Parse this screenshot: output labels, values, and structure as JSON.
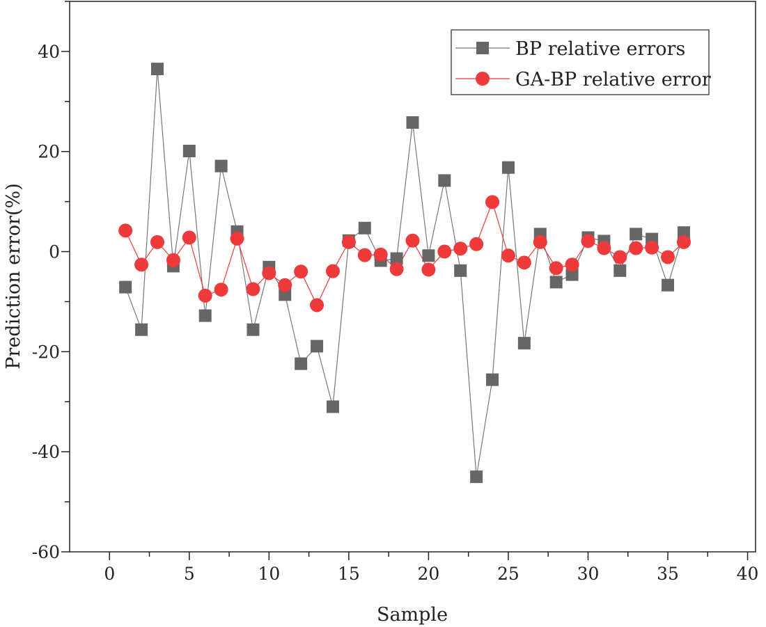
{
  "chart_data": {
    "type": "line",
    "title": "",
    "xlabel": "Sample",
    "ylabel": "Prediction error(%)",
    "xlim": [
      -2.5,
      40.5
    ],
    "ylim": [
      -60,
      50
    ],
    "xticks": [
      0,
      5,
      10,
      15,
      20,
      25,
      30,
      35,
      40
    ],
    "yticks": [
      -60,
      -40,
      -20,
      0,
      20,
      40
    ],
    "grid": false,
    "legend_position": "top-right",
    "x": [
      1,
      2,
      3,
      4,
      5,
      6,
      7,
      8,
      9,
      10,
      11,
      12,
      13,
      14,
      15,
      16,
      17,
      18,
      19,
      20,
      21,
      22,
      23,
      24,
      25,
      26,
      27,
      28,
      29,
      30,
      31,
      32,
      33,
      34,
      35,
      36
    ],
    "series": [
      {
        "name": "BP relative errors",
        "color": "#666666",
        "marker": "square",
        "values": [
          -7.1,
          -15.6,
          36.5,
          -2.9,
          20.1,
          -12.8,
          17.1,
          4.0,
          -15.6,
          -3.1,
          -8.6,
          -22.4,
          -18.9,
          -31.0,
          2.2,
          4.7,
          -1.8,
          -1.4,
          25.8,
          -0.8,
          14.2,
          -3.8,
          -45.0,
          -25.6,
          16.8,
          -18.3,
          3.5,
          -6.1,
          -4.6,
          2.8,
          2.1,
          -3.8,
          3.5,
          2.5,
          -6.7,
          3.8
        ]
      },
      {
        "name": "GA-BP relative error",
        "color": "#ee3a3a",
        "marker": "circle",
        "values": [
          4.2,
          -2.6,
          1.9,
          -1.7,
          2.8,
          -8.8,
          -7.6,
          2.6,
          -7.5,
          -4.3,
          -6.7,
          -4.0,
          -10.7,
          -3.9,
          1.9,
          -0.7,
          -0.6,
          -3.5,
          2.2,
          -3.6,
          0.0,
          0.6,
          1.5,
          9.9,
          -0.8,
          -2.2,
          1.9,
          -3.3,
          -2.6,
          2.1,
          0.7,
          -1.1,
          0.7,
          0.8,
          -1.1,
          1.9
        ]
      }
    ]
  }
}
